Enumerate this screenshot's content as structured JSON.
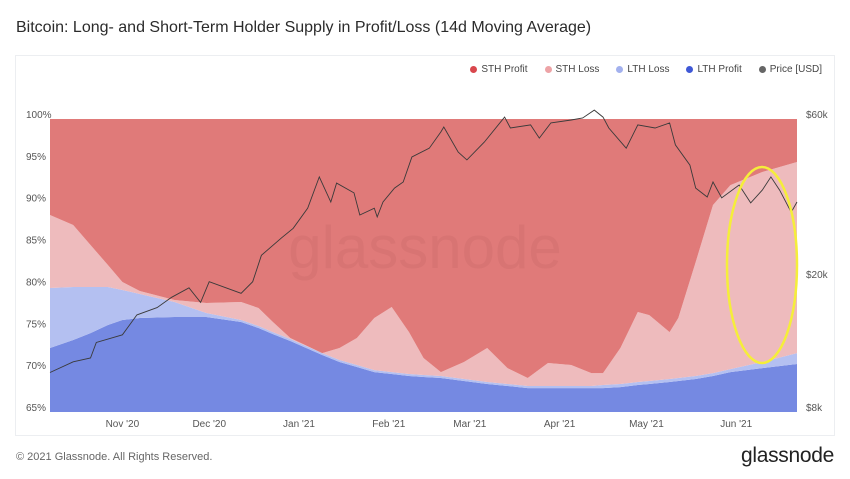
{
  "title": "Bitcoin: Long- and Short-Term Holder Supply in Profit/Loss (14d Moving Average)",
  "footer": {
    "copyright": "© 2021 Glassnode. All Rights Reserved.",
    "brand": "glassnode"
  },
  "watermark": "glassnode",
  "chart_data": {
    "type": "area",
    "stacked": true,
    "title": "Bitcoin: Long- and Short-Term Holder Supply in Profit/Loss (14d Moving Average)",
    "x_range": [
      "2020-10-07",
      "2021-06-22"
    ],
    "y_left": {
      "range": [
        65,
        100
      ],
      "unit": "%",
      "ticks": [
        "65%",
        "70%",
        "75%",
        "80%",
        "85%",
        "90%",
        "95%",
        "100%"
      ],
      "tick_values": [
        65,
        70,
        75,
        80,
        85,
        90,
        95,
        100
      ]
    },
    "y_right": {
      "scale": "log",
      "range": [
        8000,
        60000
      ],
      "ticks": [
        "$8k",
        "$20k",
        "$60k"
      ],
      "tick_values": [
        8000,
        20000,
        60000
      ]
    },
    "x_ticks": [
      {
        "label": "Nov '20",
        "date": "2020-11-01"
      },
      {
        "label": "Dec '20",
        "date": "2020-12-01"
      },
      {
        "label": "Jan '21",
        "date": "2021-01-01"
      },
      {
        "label": "Feb '21",
        "date": "2021-02-01"
      },
      {
        "label": "Mar '21",
        "date": "2021-03-01"
      },
      {
        "label": "Apr '21",
        "date": "2021-04-01"
      },
      {
        "label": "May '21",
        "date": "2021-05-01"
      },
      {
        "label": "Jun '21",
        "date": "2021-06-01"
      }
    ],
    "grid": false,
    "legend_placement": "top-right",
    "legend": [
      {
        "name": "STH Profit",
        "color": "#d9474d"
      },
      {
        "name": "STH Loss",
        "color": "#eda3a6"
      },
      {
        "name": "LTH Loss",
        "color": "#a3b1ee"
      },
      {
        "name": "LTH Profit",
        "color": "#3f58d6"
      },
      {
        "name": "Price [USD]",
        "color": "#666666"
      }
    ],
    "dates": [
      "2020-10-07",
      "2020-10-15",
      "2020-10-21",
      "2020-10-27",
      "2020-11-01",
      "2020-11-07",
      "2020-11-19",
      "2020-11-30",
      "2020-12-12",
      "2020-12-18",
      "2020-12-23",
      "2020-12-29",
      "2021-01-09",
      "2021-01-15",
      "2021-01-21",
      "2021-01-27",
      "2021-02-02",
      "2021-02-08",
      "2021-02-13",
      "2021-02-19",
      "2021-02-27",
      "2021-03-07",
      "2021-03-14",
      "2021-03-21",
      "2021-03-28",
      "2021-04-05",
      "2021-04-12",
      "2021-04-16",
      "2021-04-22",
      "2021-04-28",
      "2021-05-02",
      "2021-05-09",
      "2021-05-12",
      "2021-05-18",
      "2021-05-24",
      "2021-05-30",
      "2021-06-10",
      "2021-06-22"
    ],
    "series": [
      {
        "name": "LTH Profit",
        "color": "#7589e2",
        "values": [
          72.64,
          73.6,
          74.43,
          75.39,
          75.99,
          76.23,
          76.35,
          76.35,
          75.75,
          75.03,
          74.31,
          73.48,
          71.81,
          70.97,
          70.37,
          69.77,
          69.54,
          69.3,
          69.18,
          69.06,
          68.7,
          68.34,
          68.1,
          67.86,
          67.86,
          67.86,
          67.86,
          67.86,
          67.98,
          68.22,
          68.34,
          68.58,
          68.7,
          68.94,
          69.3,
          69.77,
          70.25,
          70.73
        ]
      },
      {
        "name": "LTH Loss",
        "color": "#b4c0f1",
        "values": [
          7.17,
          6.33,
          5.5,
          4.54,
          3.58,
          2.86,
          1.79,
          0.47,
          0.24,
          0.24,
          0.24,
          0.24,
          0.23,
          0.24,
          0.24,
          0.24,
          0.23,
          0.24,
          0.24,
          0.24,
          0.24,
          0.24,
          0.24,
          0.24,
          0.24,
          0.24,
          0.24,
          0.36,
          0.36,
          0.36,
          0.36,
          0.36,
          0.36,
          0.36,
          0.35,
          0.36,
          0.72,
          1.31
        ]
      },
      {
        "name": "STH Loss",
        "color": "#eebbbd",
        "values": [
          8.72,
          7.41,
          5.02,
          2.63,
          0.96,
          0.36,
          0.24,
          1.2,
          2.15,
          2.15,
          1.2,
          0.12,
          0.0,
          1.43,
          3.23,
          6.22,
          7.77,
          5.01,
          2.03,
          0.47,
          2.03,
          4.06,
          1.91,
          0.96,
          2.75,
          2.51,
          1.55,
          1.43,
          4.3,
          8.36,
          7.88,
          5.61,
          7.17,
          13.62,
          20.08,
          21.98,
          22.7,
          22.82
        ]
      },
      {
        "name": "STH Profit",
        "color": "#e07a79",
        "values": [
          11.47,
          12.66,
          15.05,
          17.44,
          19.47,
          20.55,
          21.62,
          21.98,
          21.86,
          22.58,
          24.25,
          26.16,
          27.96,
          27.36,
          26.16,
          23.77,
          22.46,
          25.45,
          28.55,
          30.23,
          29.03,
          27.36,
          29.75,
          30.94,
          29.15,
          29.39,
          30.35,
          30.35,
          27.36,
          23.06,
          23.42,
          25.45,
          23.77,
          17.08,
          10.27,
          7.89,
          6.33,
          5.14
        ]
      }
    ],
    "price": {
      "name": "Price [USD]",
      "color": "#3a3a3a",
      "axis": "right",
      "points": [
        [
          "2020-10-07",
          10500
        ],
        [
          "2020-10-15",
          11300
        ],
        [
          "2020-10-21",
          11600
        ],
        [
          "2020-10-23",
          12900
        ],
        [
          "2020-11-01",
          13600
        ],
        [
          "2020-11-06",
          15600
        ],
        [
          "2020-11-13",
          16400
        ],
        [
          "2020-11-18",
          17600
        ],
        [
          "2020-11-24",
          18800
        ],
        [
          "2020-11-28",
          17000
        ],
        [
          "2020-12-01",
          19600
        ],
        [
          "2020-12-12",
          18100
        ],
        [
          "2020-12-16",
          19600
        ],
        [
          "2020-12-19",
          23500
        ],
        [
          "2020-12-26",
          26500
        ],
        [
          "2020-12-30",
          28300
        ],
        [
          "2021-01-04",
          32500
        ],
        [
          "2021-01-08",
          40300
        ],
        [
          "2021-01-12",
          33900
        ],
        [
          "2021-01-14",
          38600
        ],
        [
          "2021-01-20",
          36100
        ],
        [
          "2021-01-22",
          31000
        ],
        [
          "2021-01-27",
          32500
        ],
        [
          "2021-01-28",
          30600
        ],
        [
          "2021-01-30",
          33900
        ],
        [
          "2021-02-03",
          37300
        ],
        [
          "2021-02-06",
          38900
        ],
        [
          "2021-02-09",
          46200
        ],
        [
          "2021-02-15",
          49100
        ],
        [
          "2021-02-19",
          54900
        ],
        [
          "2021-02-20",
          56800
        ],
        [
          "2021-02-25",
          47800
        ],
        [
          "2021-02-28",
          45300
        ],
        [
          "2021-03-06",
          51200
        ],
        [
          "2021-03-13",
          60800
        ],
        [
          "2021-03-15",
          56400
        ],
        [
          "2021-03-22",
          57600
        ],
        [
          "2021-03-25",
          52600
        ],
        [
          "2021-03-29",
          58400
        ],
        [
          "2021-04-05",
          59600
        ],
        [
          "2021-04-09",
          60400
        ],
        [
          "2021-04-13",
          63800
        ],
        [
          "2021-04-16",
          60800
        ],
        [
          "2021-04-18",
          56400
        ],
        [
          "2021-04-24",
          49100
        ],
        [
          "2021-04-28",
          57600
        ],
        [
          "2021-05-04",
          56400
        ],
        [
          "2021-05-09",
          58400
        ],
        [
          "2021-05-11",
          50200
        ],
        [
          "2021-05-16",
          43700
        ],
        [
          "2021-05-18",
          37300
        ],
        [
          "2021-05-22",
          35100
        ],
        [
          "2021-05-24",
          38900
        ],
        [
          "2021-05-27",
          34900
        ],
        [
          "2021-06-02",
          38100
        ],
        [
          "2021-06-06",
          33700
        ],
        [
          "2021-06-10",
          36800
        ],
        [
          "2021-06-13",
          40300
        ],
        [
          "2021-06-16",
          36800
        ],
        [
          "2021-06-20",
          31600
        ],
        [
          "2021-06-22",
          33900
        ]
      ]
    },
    "annotations": [
      {
        "type": "ellipse",
        "color": "#f5ee3a",
        "around_dates": [
          "2021-05-28",
          "2021-06-20"
        ]
      }
    ]
  }
}
